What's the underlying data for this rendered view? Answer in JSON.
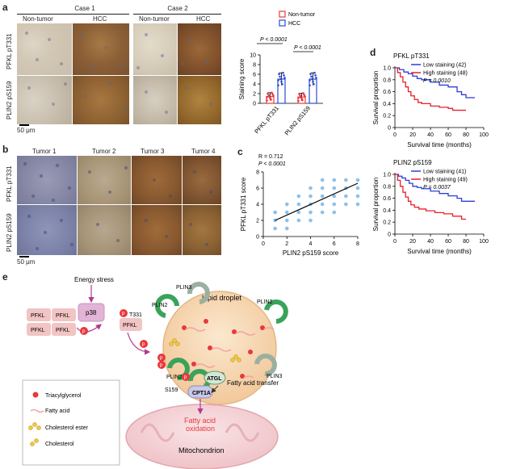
{
  "panel_a": {
    "letter": "a",
    "case1": "Case 1",
    "case2": "Case 2",
    "columns": [
      "Non-tumor",
      "HCC",
      "Non-tumor",
      "HCC"
    ],
    "rows": [
      "PFKL pT331",
      "PLIN2 pS159"
    ],
    "scale": "50 μm"
  },
  "panel_a_chart": {
    "legend": [
      "Non-tumor",
      "HCC"
    ],
    "p1": "P < 0.0001",
    "p2": "P < 0.0001"
  },
  "panel_b": {
    "letter": "b",
    "columns": [
      "Tumor 1",
      "Tumor 2",
      "Tumor 3",
      "Tumor 4"
    ],
    "rows": [
      "PFKL pT331",
      "PLIN2 pS159"
    ],
    "scale": "50 μm"
  },
  "panel_c": {
    "letter": "c",
    "r_text": "R = 0.712",
    "p_text": "P < 0.0001"
  },
  "panel_d": {
    "letter": "d",
    "p1": "P = 0.0010",
    "p2": "P = 0.0037"
  },
  "panel_e": {
    "letter": "e",
    "energy_stress": "Energy stress",
    "p38": "p38",
    "pfkl": "PFKL",
    "t331": "T331",
    "p_mark": "P",
    "plin2": "PLIN2",
    "plin3": "PLIN3",
    "lipid_droplet": "Lipid droplet",
    "s159": "S159",
    "atgl": "ATGL",
    "cpt1a": "CPT1A",
    "fatty_acid_transfer": "Fatty acid transfer",
    "fatty_acid_oxidation_1": "Fatty acid",
    "fatty_acid_oxidation_2": "oxidation",
    "mitochondrion": "Mitochondrion",
    "legend": [
      "Triacylglycerol",
      "Fatty acid",
      "Cholesterol ester",
      "Cholesterol"
    ]
  },
  "chart_data": [
    {
      "type": "bar",
      "title": "",
      "categories": [
        "PFKL pT331",
        "PLIN2 pS159"
      ],
      "series": [
        {
          "name": "Non-tumor",
          "values": [
            1.4,
            1.3
          ],
          "errors": [
            0.8,
            0.8
          ],
          "color": "#e8383d"
        },
        {
          "name": "HCC",
          "values": [
            5.0,
            5.0
          ],
          "errors": [
            1.3,
            1.3
          ],
          "color": "#2b4bd8"
        }
      ],
      "xlabel": "",
      "ylabel": "Staining score",
      "ylim": [
        0,
        10
      ],
      "yticks": [
        "0",
        "2",
        "4",
        "6",
        "8",
        "10"
      ],
      "annotations": [
        "P < 0.0001",
        "P < 0.0001"
      ]
    },
    {
      "type": "scatter",
      "title": "",
      "xlabel": "PLIN2 pS159 score",
      "ylabel": "PFKL pT331 score",
      "xlim": [
        0,
        8
      ],
      "ylim": [
        0,
        8
      ],
      "xticks": [
        "0",
        "2",
        "4",
        "6",
        "8"
      ],
      "yticks": [
        "0",
        "2",
        "4",
        "6",
        "8"
      ],
      "points": [
        [
          1,
          1
        ],
        [
          1,
          2
        ],
        [
          1,
          3
        ],
        [
          2,
          1
        ],
        [
          2,
          2
        ],
        [
          2,
          3
        ],
        [
          2,
          4
        ],
        [
          3,
          2
        ],
        [
          3,
          3
        ],
        [
          3,
          4
        ],
        [
          3,
          5
        ],
        [
          4,
          2
        ],
        [
          4,
          3
        ],
        [
          4,
          4
        ],
        [
          4,
          5
        ],
        [
          4,
          6
        ],
        [
          5,
          3
        ],
        [
          5,
          4
        ],
        [
          5,
          5
        ],
        [
          5,
          6
        ],
        [
          5,
          7
        ],
        [
          6,
          3
        ],
        [
          6,
          4
        ],
        [
          6,
          5
        ],
        [
          6,
          6
        ],
        [
          6,
          7
        ],
        [
          7,
          4
        ],
        [
          7,
          5
        ],
        [
          7,
          6
        ],
        [
          7,
          7
        ],
        [
          8,
          4
        ],
        [
          8,
          5
        ],
        [
          8,
          6
        ],
        [
          8,
          7
        ]
      ],
      "fit_line": [
        [
          1,
          2.0
        ],
        [
          8,
          6.6
        ]
      ],
      "annotations": [
        "R = 0.712",
        "P < 0.0001"
      ]
    },
    {
      "type": "line",
      "title": "PFKL pT331",
      "xlabel": "Survival time (months)",
      "ylabel": "Survival proportion",
      "xlim": [
        0,
        100
      ],
      "ylim": [
        0,
        1.0
      ],
      "xticks": [
        "0",
        "20",
        "40",
        "60",
        "80",
        "100"
      ],
      "yticks": [
        "0",
        "0.2",
        "0.4",
        "0.6",
        "0.8",
        "1.0"
      ],
      "series": [
        {
          "name": "Low staining (42)",
          "color": "#2b3fd8",
          "steps": [
            [
              0,
              1.0
            ],
            [
              5,
              0.97
            ],
            [
              10,
              0.93
            ],
            [
              15,
              0.9
            ],
            [
              20,
              0.86
            ],
            [
              25,
              0.82
            ],
            [
              30,
              0.8
            ],
            [
              40,
              0.76
            ],
            [
              50,
              0.71
            ],
            [
              60,
              0.68
            ],
            [
              70,
              0.6
            ],
            [
              75,
              0.55
            ],
            [
              80,
              0.5
            ],
            [
              90,
              0.5
            ]
          ]
        },
        {
          "name": "High staining (48)",
          "color": "#e8202a",
          "steps": [
            [
              0,
              1.0
            ],
            [
              3,
              0.92
            ],
            [
              6,
              0.85
            ],
            [
              9,
              0.76
            ],
            [
              12,
              0.68
            ],
            [
              15,
              0.6
            ],
            [
              18,
              0.53
            ],
            [
              22,
              0.47
            ],
            [
              26,
              0.42
            ],
            [
              30,
              0.4
            ],
            [
              40,
              0.36
            ],
            [
              50,
              0.34
            ],
            [
              60,
              0.32
            ],
            [
              65,
              0.29
            ],
            [
              80,
              0.29
            ]
          ]
        }
      ],
      "annotations": [
        "P = 0.0010"
      ]
    },
    {
      "type": "line",
      "title": "PLIN2 pS159",
      "xlabel": "Survival time (months)",
      "ylabel": "Survival proportion",
      "xlim": [
        0,
        100
      ],
      "ylim": [
        0,
        1.0
      ],
      "xticks": [
        "0",
        "20",
        "40",
        "60",
        "80",
        "100"
      ],
      "yticks": [
        "0",
        "0.2",
        "0.4",
        "0.6",
        "0.8",
        "1.0"
      ],
      "series": [
        {
          "name": "Low staining (41)",
          "color": "#2b3fd8",
          "steps": [
            [
              0,
              1.0
            ],
            [
              4,
              0.97
            ],
            [
              8,
              0.94
            ],
            [
              12,
              0.9
            ],
            [
              16,
              0.85
            ],
            [
              20,
              0.8
            ],
            [
              25,
              0.78
            ],
            [
              30,
              0.76
            ],
            [
              40,
              0.72
            ],
            [
              50,
              0.68
            ],
            [
              60,
              0.64
            ],
            [
              70,
              0.6
            ],
            [
              75,
              0.55
            ],
            [
              90,
              0.55
            ]
          ]
        },
        {
          "name": "High staining (49)",
          "color": "#e8202a",
          "steps": [
            [
              0,
              1.0
            ],
            [
              3,
              0.9
            ],
            [
              6,
              0.8
            ],
            [
              9,
              0.7
            ],
            [
              12,
              0.62
            ],
            [
              15,
              0.55
            ],
            [
              18,
              0.49
            ],
            [
              22,
              0.45
            ],
            [
              27,
              0.42
            ],
            [
              35,
              0.39
            ],
            [
              45,
              0.36
            ],
            [
              55,
              0.34
            ],
            [
              65,
              0.3
            ],
            [
              75,
              0.25
            ],
            [
              80,
              0.25
            ]
          ]
        }
      ],
      "annotations": [
        "P = 0.0037"
      ]
    }
  ]
}
